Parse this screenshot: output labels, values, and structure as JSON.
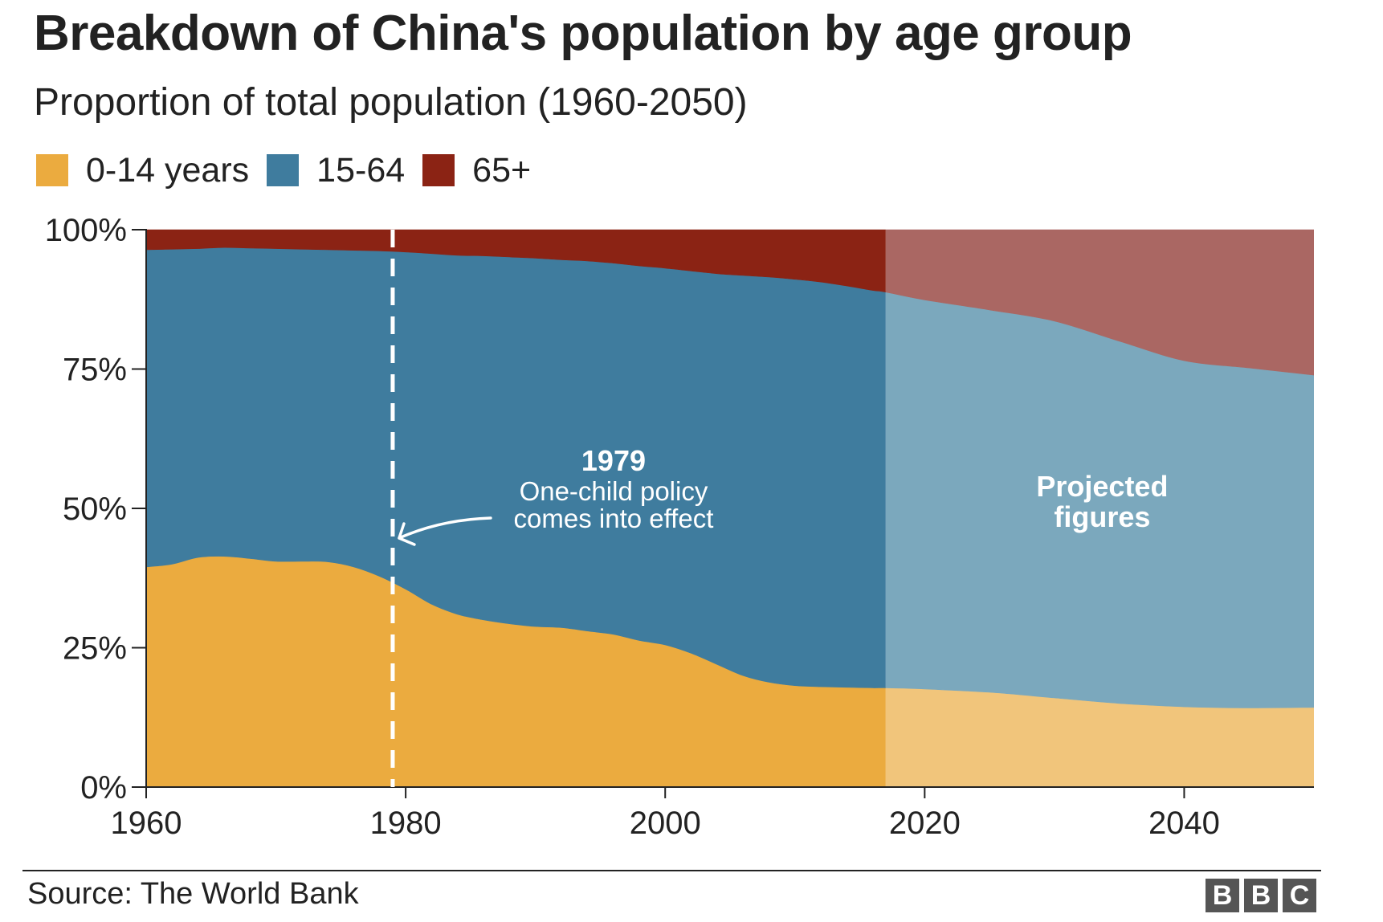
{
  "header": {
    "title": "Breakdown of China's population by age group",
    "subtitle": "Proportion of total population (1960-2050)"
  },
  "colors": {
    "age_0_14": "#ebab3f",
    "age_15_64": "#3f7c9e",
    "age_65_plus": "#8b2314",
    "age_0_14_projected": "#f1c57b",
    "age_15_64_projected": "#7ba8bd",
    "age_65_plus_projected": "#aa6763"
  },
  "chart_data": {
    "type": "area",
    "stacked": true,
    "title": "Breakdown of China's population by age group",
    "subtitle": "Proportion of total population (1960-2050)",
    "xlim": [
      1960,
      2050
    ],
    "ylim": [
      0,
      100
    ],
    "x_ticks": [
      "1960",
      "1980",
      "2000",
      "2020",
      "2040"
    ],
    "y_ticks": [
      "0%",
      "25%",
      "50%",
      "75%",
      "100%"
    ],
    "projection_start": 2017,
    "legend_position": "top-left",
    "grid": false,
    "x": [
      1960,
      1962,
      1964,
      1966,
      1968,
      1970,
      1972,
      1974,
      1976,
      1978,
      1980,
      1982,
      1984,
      1986,
      1988,
      1990,
      1992,
      1994,
      1996,
      1998,
      2000,
      2002,
      2004,
      2006,
      2008,
      2010,
      2012,
      2014,
      2016,
      2017,
      2020,
      2025,
      2030,
      2035,
      2040,
      2045,
      2050
    ],
    "series": [
      {
        "name": "0-14 years",
        "values": [
          39.5,
          40.0,
          41.2,
          41.4,
          41.0,
          40.5,
          40.5,
          40.4,
          39.5,
          37.8,
          35.5,
          32.8,
          31.0,
          30.0,
          29.3,
          28.8,
          28.6,
          28.0,
          27.4,
          26.3,
          25.5,
          24.0,
          22.0,
          20.0,
          18.8,
          18.2,
          18.0,
          17.9,
          17.8,
          17.8,
          17.6,
          17.0,
          16.0,
          15.0,
          14.4,
          14.2,
          14.3
        ]
      },
      {
        "name": "15-64",
        "values": [
          56.9,
          56.5,
          55.4,
          55.4,
          55.7,
          56.1,
          56.0,
          56.0,
          56.8,
          58.4,
          60.5,
          62.9,
          64.4,
          65.3,
          65.8,
          66.1,
          66.0,
          66.4,
          66.6,
          67.2,
          67.6,
          68.6,
          70.1,
          71.8,
          72.7,
          72.9,
          72.6,
          72.0,
          71.3,
          71.0,
          69.8,
          68.6,
          67.6,
          65.0,
          62.1,
          61.0,
          59.6
        ]
      },
      {
        "name": "65+",
        "values": [
          3.6,
          3.5,
          3.4,
          3.2,
          3.3,
          3.4,
          3.5,
          3.6,
          3.7,
          3.8,
          4.0,
          4.3,
          4.6,
          4.7,
          4.9,
          5.1,
          5.4,
          5.6,
          6.0,
          6.5,
          6.9,
          7.4,
          7.9,
          8.2,
          8.5,
          8.9,
          9.4,
          10.1,
          10.9,
          11.2,
          12.6,
          14.4,
          16.4,
          20.0,
          23.5,
          24.8,
          26.1
        ]
      }
    ],
    "annotations": [
      {
        "year": 1979,
        "title": "1979",
        "line1": "One-child policy",
        "line2": "comes into effect"
      },
      {
        "line1": "Projected",
        "line2": "figures"
      }
    ]
  },
  "footer": {
    "source": "Source: The World Bank",
    "logo_letters": [
      "B",
      "B",
      "C"
    ]
  }
}
